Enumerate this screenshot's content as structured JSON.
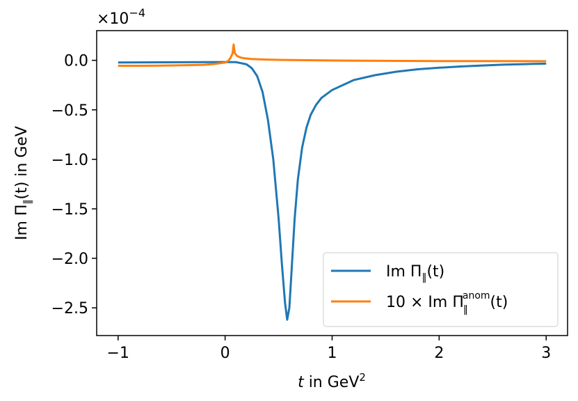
{
  "chart_data": {
    "type": "line",
    "xlabel": {
      "var": "t",
      "mid": " in GeV",
      "sup": "2"
    },
    "ylabel": {
      "pre": "Im Π",
      "sub": "‖",
      "post": "(t) in GeV"
    },
    "offset_text": {
      "base": "×10",
      "exp": "−4"
    },
    "xlim": [
      -1.2,
      3.2
    ],
    "ylim": [
      -2.78,
      0.3
    ],
    "scale": "1e-4",
    "x_ticks": [
      -1,
      0,
      1,
      2,
      3
    ],
    "x_tick_labels": [
      "−1",
      "0",
      "1",
      "2",
      "3"
    ],
    "y_ticks": [
      0.0,
      -0.5,
      -1.0,
      -1.5,
      -2.0,
      -2.5
    ],
    "y_tick_labels": [
      "0.0",
      "−0.5",
      "−1.0",
      "−1.5",
      "−2.0",
      "−2.5"
    ],
    "grid": false,
    "legend_position": "lower-right",
    "series": [
      {
        "name": "Im Π‖(t)",
        "legend": {
          "pre": "Im Π",
          "sub": "‖",
          "post": "(t)"
        },
        "color": "#1f77b4",
        "x": [
          -1.0,
          -0.8,
          -0.6,
          -0.4,
          -0.2,
          0.0,
          0.1,
          0.2,
          0.25,
          0.3,
          0.35,
          0.4,
          0.45,
          0.5,
          0.53,
          0.56,
          0.58,
          0.6,
          0.62,
          0.65,
          0.68,
          0.72,
          0.76,
          0.8,
          0.85,
          0.9,
          1.0,
          1.2,
          1.4,
          1.6,
          1.8,
          2.0,
          2.2,
          2.4,
          2.6,
          2.8,
          3.0
        ],
        "y": [
          -0.022,
          -0.021,
          -0.02,
          -0.019,
          -0.018,
          -0.017,
          -0.018,
          -0.04,
          -0.08,
          -0.16,
          -0.32,
          -0.6,
          -1.0,
          -1.6,
          -2.05,
          -2.45,
          -2.62,
          -2.5,
          -2.15,
          -1.6,
          -1.2,
          -0.88,
          -0.68,
          -0.55,
          -0.45,
          -0.38,
          -0.3,
          -0.2,
          -0.15,
          -0.115,
          -0.09,
          -0.075,
          -0.062,
          -0.052,
          -0.044,
          -0.038,
          -0.033
        ]
      },
      {
        "name": "10 × Im Π‖anom(t)",
        "legend": {
          "pre": "10 × Im Π",
          "sub": "‖",
          "sup": "anom",
          "post": "(t)"
        },
        "color": "#ff7f0e",
        "x": [
          -1.0,
          -0.8,
          -0.6,
          -0.4,
          -0.2,
          -0.1,
          0.0,
          0.03,
          0.05,
          0.07,
          0.08,
          0.09,
          0.11,
          0.14,
          0.18,
          0.25,
          0.35,
          0.5,
          0.7,
          1.0,
          1.5,
          2.0,
          2.5,
          3.0
        ],
        "y": [
          -0.055,
          -0.055,
          -0.053,
          -0.05,
          -0.045,
          -0.037,
          -0.022,
          -0.005,
          0.025,
          0.07,
          0.16,
          0.075,
          0.045,
          0.03,
          0.02,
          0.014,
          0.009,
          0.005,
          0.002,
          -0.002,
          -0.005,
          -0.007,
          -0.008,
          -0.009
        ]
      }
    ]
  }
}
